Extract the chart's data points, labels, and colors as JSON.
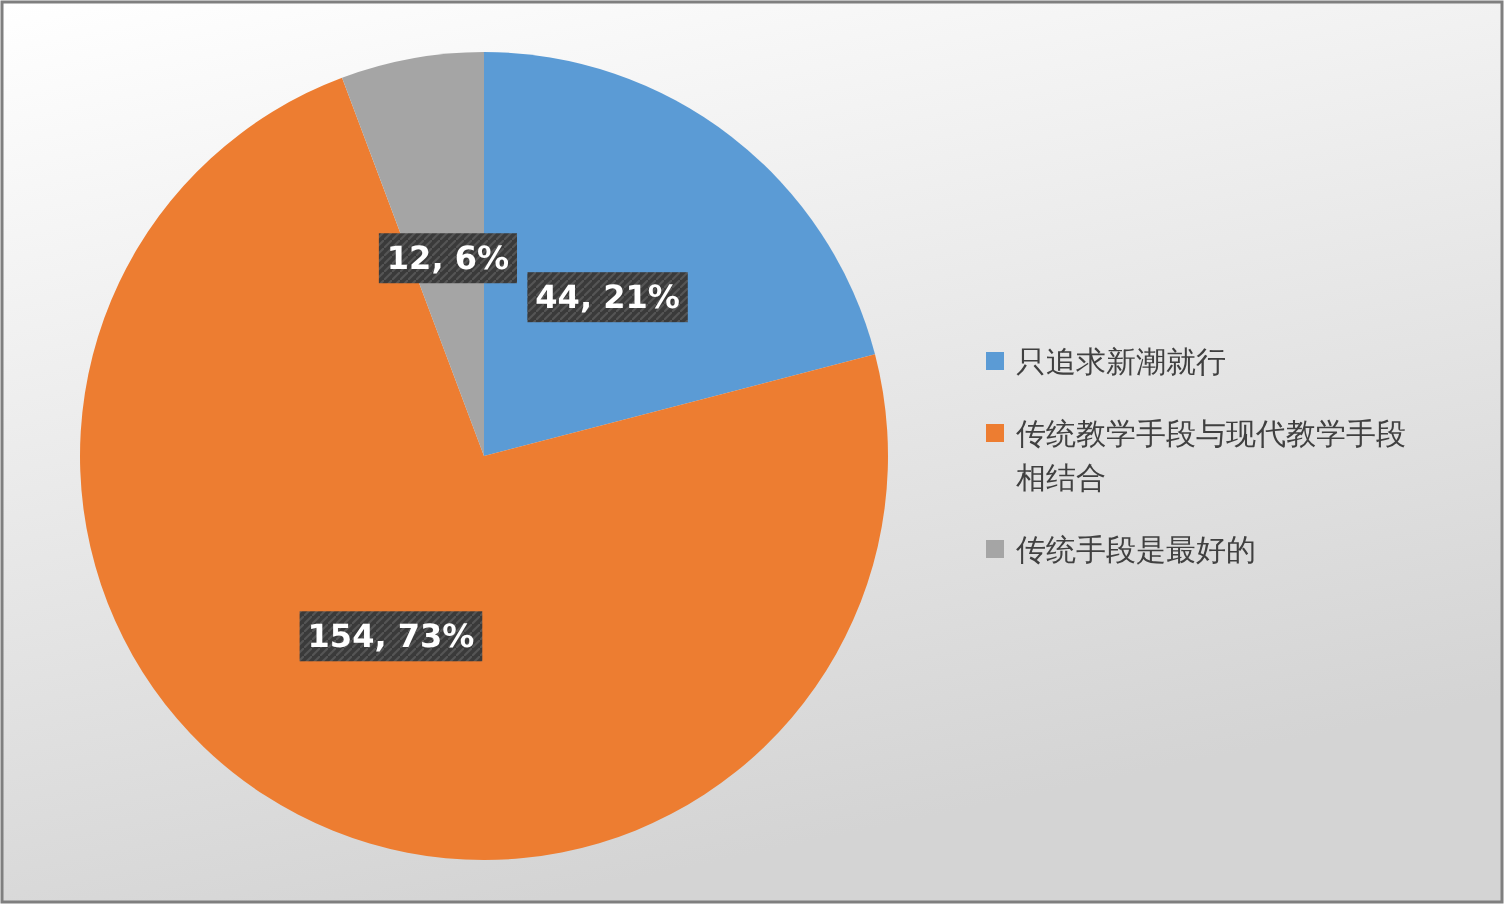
{
  "chart_data": {
    "type": "pie",
    "categories": [
      "只追求新潮就行",
      "传统教学手段与现代教学手段相结合",
      "传统手段是最好的"
    ],
    "values": [
      44,
      154,
      12
    ],
    "colors": [
      "#5b9bd5",
      "#ed7d31",
      "#a5a5a5"
    ],
    "value_labels": [
      "44, 21%",
      "154, 73%",
      "12, 6%"
    ],
    "legend": "right"
  }
}
